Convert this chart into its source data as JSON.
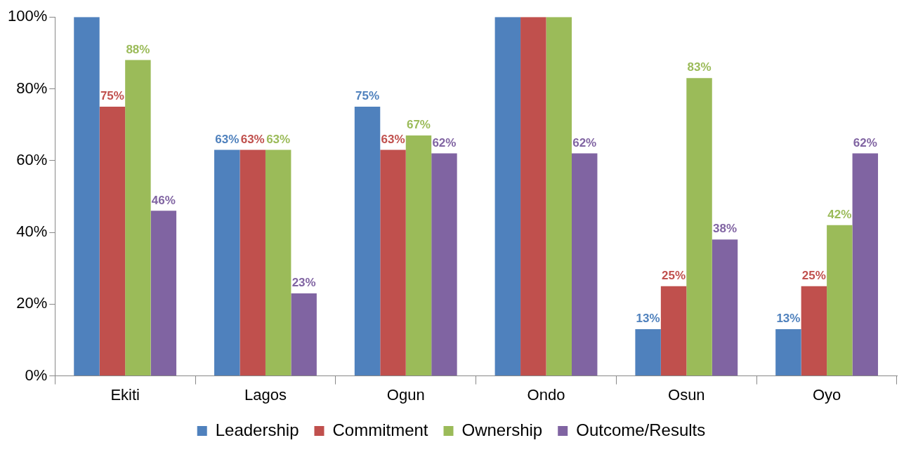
{
  "chart_data": {
    "type": "bar",
    "categories": [
      "Ekiti",
      "Lagos",
      "Ogun",
      "Ondo",
      "Osun",
      "Oyo"
    ],
    "series": [
      {
        "name": "Leadership",
        "color": "#4f81bd",
        "values": [
          100,
          63,
          75,
          100,
          13,
          13
        ],
        "value_labels": [
          null,
          "63%",
          "75%",
          null,
          "13%",
          "13%"
        ]
      },
      {
        "name": "Commitment",
        "color": "#c0504d",
        "values": [
          75,
          63,
          63,
          100,
          25,
          25
        ],
        "value_labels": [
          "75%",
          "63%",
          "63%",
          null,
          "25%",
          "25%"
        ]
      },
      {
        "name": "Ownership",
        "color": "#9bbb59",
        "values": [
          88,
          63,
          67,
          100,
          83,
          42
        ],
        "value_labels": [
          "88%",
          "63%",
          "67%",
          null,
          "83%",
          "42%"
        ]
      },
      {
        "name": "Outcome/Results",
        "color": "#8064a2",
        "values": [
          46,
          23,
          62,
          62,
          38,
          62
        ],
        "value_labels": [
          "46%",
          "23%",
          "62%",
          "62%",
          "38%",
          "62%"
        ]
      }
    ],
    "ylim": [
      0,
      100
    ],
    "yticks": [
      {
        "value": 0,
        "label": "0%"
      },
      {
        "value": 20,
        "label": "20%"
      },
      {
        "value": 40,
        "label": "40%"
      },
      {
        "value": 60,
        "label": "60%"
      },
      {
        "value": 80,
        "label": "80%"
      },
      {
        "value": 100,
        "label": "100%"
      }
    ],
    "grid": false,
    "legend": "bottom"
  }
}
